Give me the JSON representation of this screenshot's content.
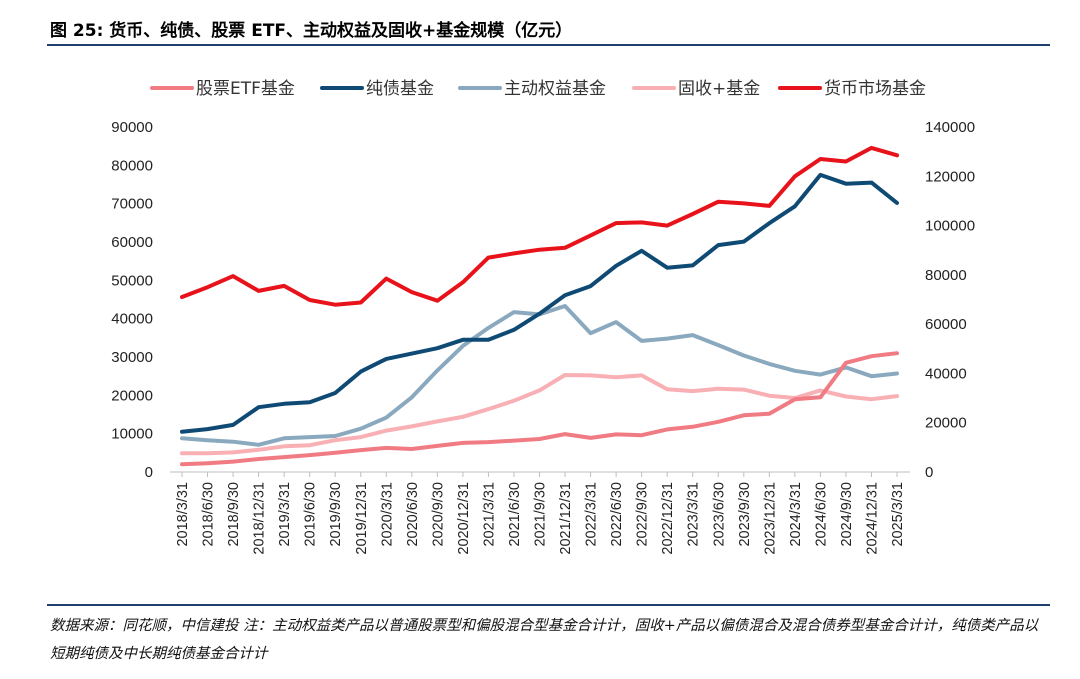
{
  "figure": {
    "title": "图 25: 货币、纯债、股票 ETF、主动权益及固收+基金规模（亿元）",
    "note": "数据来源：同花顺，中信建投 注：主动权益类产品以普通股票型和偏股混合型基金合计计，固收+产品以偏债混合及混合债券型基金合计计，纯债类产品以短期纯债及中长期纯债基金合计计"
  },
  "chart_data": {
    "type": "line",
    "title": "",
    "xlabel": "",
    "ylabel": "",
    "y_left": {
      "range": [
        0,
        90000
      ],
      "ticks": [
        0,
        10000,
        20000,
        30000,
        40000,
        50000,
        60000,
        70000,
        80000,
        90000
      ]
    },
    "y_right": {
      "range": [
        0,
        140000
      ],
      "ticks": [
        0,
        20000,
        40000,
        60000,
        80000,
        100000,
        120000,
        140000
      ]
    },
    "grid": false,
    "legend_position": "top",
    "categories": [
      "2018/3/31",
      "2018/6/30",
      "2018/9/30",
      "2018/12/31",
      "2019/3/31",
      "2019/6/30",
      "2019/9/30",
      "2019/12/31",
      "2020/3/31",
      "2020/6/30",
      "2020/9/30",
      "2020/12/31",
      "2021/3/31",
      "2021/6/30",
      "2021/9/30",
      "2021/12/31",
      "2022/3/31",
      "2022/6/30",
      "2022/9/30",
      "2022/12/31",
      "2023/3/31",
      "2023/6/30",
      "2023/9/30",
      "2023/12/31",
      "2024/3/31",
      "2024/6/30",
      "2024/9/30",
      "2024/12/31",
      "2025/3/31"
    ],
    "series": [
      {
        "name": "股票ETF基金",
        "axis": "left",
        "color": "#f07b83",
        "values": [
          2000,
          2300,
          2700,
          3400,
          3900,
          4400,
          5000,
          5700,
          6300,
          6000,
          6800,
          7600,
          7800,
          8200,
          8600,
          9900,
          8900,
          9800,
          9600,
          11100,
          11800,
          13100,
          14800,
          15200,
          19000,
          19500,
          28500,
          30200,
          31000
        ]
      },
      {
        "name": "纯债基金",
        "axis": "left",
        "color": "#0f4a75",
        "values": [
          10500,
          11200,
          12300,
          16900,
          17800,
          18200,
          20600,
          26200,
          29500,
          30900,
          32300,
          34500,
          34500,
          37100,
          41300,
          46100,
          48500,
          53800,
          57700,
          53300,
          53900,
          59200,
          60100,
          64900,
          69300,
          77500,
          75200,
          75500,
          70200
        ]
      },
      {
        "name": "主动权益基金",
        "axis": "left",
        "color": "#8aa9bf",
        "values": [
          8800,
          8300,
          7900,
          7100,
          8800,
          9100,
          9400,
          11300,
          14200,
          19500,
          26500,
          32900,
          37600,
          41700,
          41100,
          43300,
          36200,
          39100,
          34200,
          34800,
          35700,
          33100,
          30400,
          28200,
          26400,
          25400,
          27300,
          25000,
          25700
        ]
      },
      {
        "name": "固收+基金",
        "axis": "left",
        "color": "#f8b0b4",
        "values": [
          4900,
          4900,
          5100,
          5800,
          6700,
          7000,
          8300,
          9100,
          10800,
          11900,
          13200,
          14400,
          16400,
          18600,
          21300,
          25300,
          25200,
          24700,
          25200,
          21600,
          21100,
          21700,
          21500,
          19900,
          19300,
          21300,
          19700,
          19000,
          19800
        ]
      },
      {
        "name": "货币市场基金",
        "axis": "right",
        "color": "#e8121b",
        "values": [
          71000,
          75000,
          79500,
          73500,
          75500,
          69800,
          67900,
          68800,
          78500,
          73000,
          69500,
          77000,
          87000,
          88700,
          90200,
          91000,
          96000,
          101000,
          101300,
          100000,
          104700,
          109700,
          109000,
          108000,
          120000,
          127000,
          126000,
          131500,
          128500
        ]
      }
    ]
  }
}
